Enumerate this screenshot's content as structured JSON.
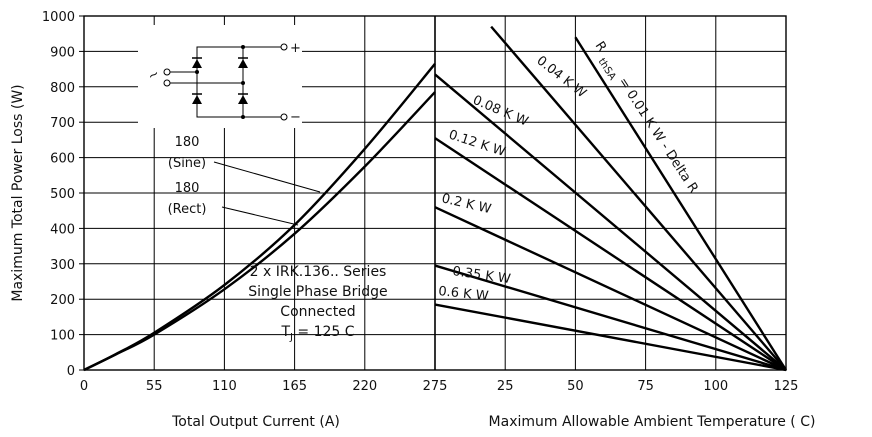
{
  "chart_data": {
    "type": "line",
    "ylabel": "Maximum Total Power Loss (W)",
    "ylim": [
      0,
      1000
    ],
    "yticks": [
      "0",
      "100",
      "200",
      "300",
      "400",
      "500",
      "600",
      "700",
      "800",
      "900",
      "1000"
    ],
    "left_panel": {
      "xlabel": "Total Output Current (A)",
      "xlim": [
        0,
        275
      ],
      "xticks": [
        "0",
        "55",
        "110",
        "165",
        "220",
        "275"
      ],
      "series": [
        {
          "name": "180 (Sine)",
          "label_line1": "180",
          "label_line2": "(Sine)",
          "x": [
            0,
            25,
            55,
            110,
            165,
            220,
            275
          ],
          "y": [
            0,
            45,
            105,
            240,
            410,
            625,
            865
          ]
        },
        {
          "name": "180 (Rect)",
          "label_line1": "180",
          "label_line2": "(Rect)",
          "x": [
            0,
            25,
            55,
            110,
            165,
            220,
            275
          ],
          "y": [
            0,
            44,
            100,
            228,
            385,
            575,
            785
          ]
        }
      ],
      "annotation": [
        "2 x IRK.136.. Series",
        "Single Phase Bridge",
        "Connected"
      ],
      "tj_label": "T",
      "tj_sub": "J",
      "tj_value": " = 125 C"
    },
    "right_panel": {
      "xlabel": "Maximum Allowable Ambient Temperature ( C)",
      "xlim": [
        0,
        125
      ],
      "xticks": [
        "25",
        "50",
        "75",
        "100",
        "125"
      ],
      "series_title_main": "R",
      "series_title_sub": "thSA",
      "series_title_rest": " = 0.01 K W - Delta R",
      "series": [
        {
          "name": "0.01 K W",
          "x": [
            50,
            125
          ],
          "y": [
            940,
            0
          ]
        },
        {
          "name": "0.04 K W",
          "x": [
            20,
            125
          ],
          "y": [
            970,
            0
          ]
        },
        {
          "name": "0.08 K W",
          "x": [
            0,
            125
          ],
          "y": [
            835,
            0
          ]
        },
        {
          "name": "0.12 K W",
          "x": [
            0,
            125
          ],
          "y": [
            655,
            0
          ]
        },
        {
          "name": "0.2 K W",
          "x": [
            0,
            125
          ],
          "y": [
            460,
            0
          ]
        },
        {
          "name": "0.35 K W",
          "x": [
            0,
            125
          ],
          "y": [
            295,
            0
          ]
        },
        {
          "name": "0.6 K W",
          "x": [
            0,
            125
          ],
          "y": [
            185,
            0
          ]
        }
      ]
    },
    "grid": true,
    "schematic_symbols": {
      "ac": "~",
      "plus": "+",
      "minus": "−"
    }
  }
}
